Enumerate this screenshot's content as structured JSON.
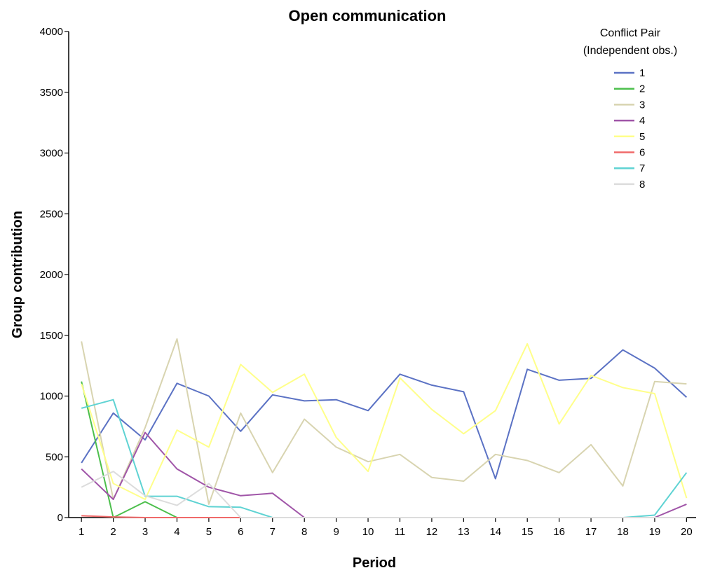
{
  "chart_data": {
    "type": "line",
    "title": "Open communication",
    "xlabel": "Period",
    "ylabel": "Group contribution",
    "x": [
      1,
      2,
      3,
      4,
      5,
      6,
      7,
      8,
      9,
      10,
      11,
      12,
      13,
      14,
      15,
      16,
      17,
      18,
      19,
      20
    ],
    "ylim": [
      0,
      4000
    ],
    "yticks": [
      0,
      500,
      1000,
      1500,
      2000,
      2500,
      3000,
      3500,
      4000
    ],
    "grid": false,
    "legend": {
      "title_line1": "Conflict Pair",
      "title_line2": "(Independent obs.)",
      "placement": "top-right"
    },
    "series": [
      {
        "name": "1",
        "color": "#5b72c4",
        "values": [
          450,
          860,
          640,
          1105,
          1000,
          710,
          1010,
          960,
          970,
          880,
          1180,
          1090,
          1035,
          320,
          1220,
          1130,
          1145,
          1380,
          1230,
          990
        ]
      },
      {
        "name": "2",
        "color": "#4cbf4c",
        "values": [
          1120,
          0,
          130,
          0,
          0,
          0,
          0,
          0,
          0,
          0,
          0,
          0,
          0,
          0,
          0,
          0,
          0,
          0,
          0,
          0
        ]
      },
      {
        "name": "3",
        "color": "#d8d4b0",
        "values": [
          1450,
          150,
          740,
          1470,
          110,
          860,
          370,
          810,
          580,
          460,
          520,
          330,
          300,
          520,
          470,
          370,
          600,
          260,
          1120,
          1100
        ]
      },
      {
        "name": "4",
        "color": "#a055a8",
        "values": [
          400,
          150,
          700,
          400,
          250,
          180,
          200,
          0,
          0,
          0,
          0,
          0,
          0,
          0,
          0,
          0,
          0,
          0,
          0,
          110
        ]
      },
      {
        "name": "5",
        "color": "#ffff8a",
        "values": [
          1100,
          280,
          150,
          720,
          580,
          1260,
          1030,
          1180,
          660,
          380,
          1150,
          890,
          690,
          880,
          1430,
          770,
          1170,
          1070,
          1020,
          160
        ]
      },
      {
        "name": "6",
        "color": "#f06a6a",
        "values": [
          15,
          5,
          0,
          0,
          0,
          0,
          null,
          null,
          null,
          null,
          null,
          null,
          null,
          null,
          null,
          null,
          null,
          null,
          null,
          null
        ]
      },
      {
        "name": "7",
        "color": "#5fd3d3",
        "values": [
          900,
          970,
          175,
          175,
          90,
          85,
          0,
          0,
          0,
          0,
          0,
          0,
          0,
          0,
          0,
          0,
          0,
          0,
          20,
          370
        ]
      },
      {
        "name": "8",
        "color": "#dcdcdc",
        "values": [
          250,
          380,
          180,
          100,
          280,
          0,
          0,
          0,
          0,
          0,
          0,
          0,
          0,
          0,
          0,
          0,
          0,
          0,
          0,
          0
        ]
      }
    ]
  }
}
